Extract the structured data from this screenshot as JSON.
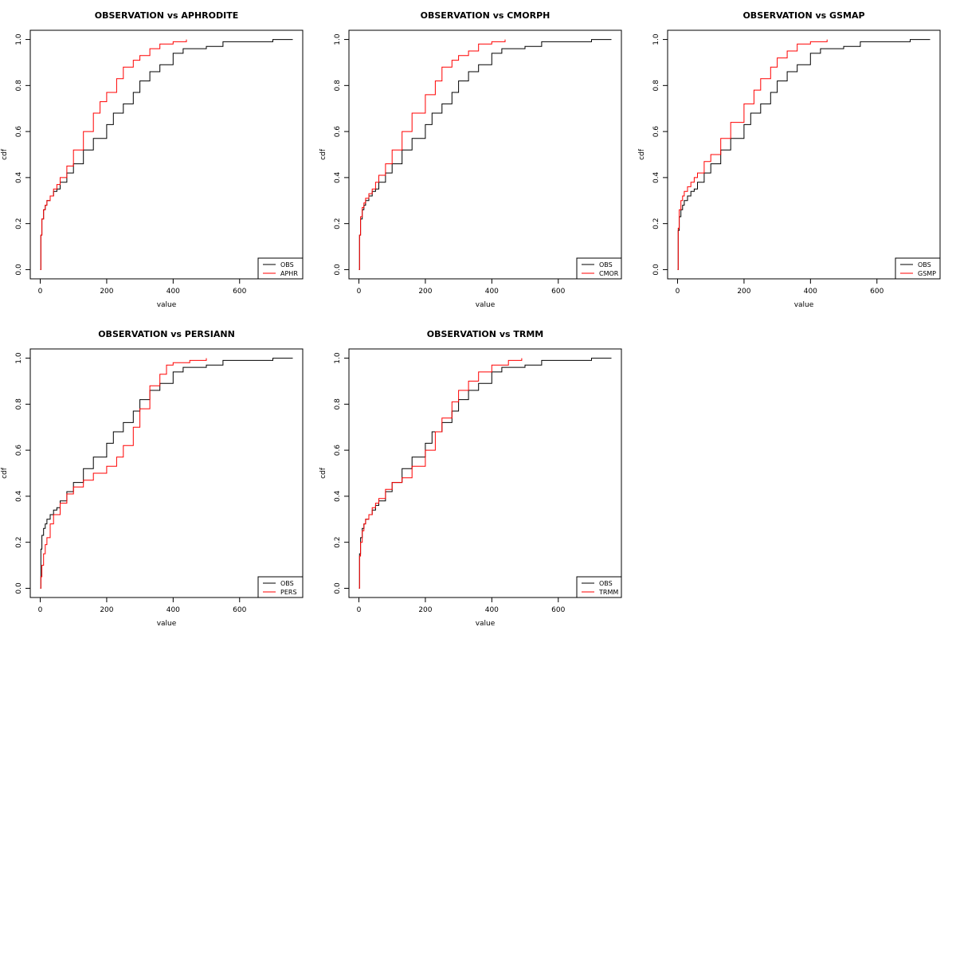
{
  "colors": {
    "obs": "#000000",
    "product": "#ff0000",
    "background": "#ffffff"
  },
  "chart_data": [
    {
      "type": "line",
      "title": "OBSERVATION vs APHRODITE",
      "xlabel": "value",
      "ylabel": "cdf",
      "xlim": [
        0,
        750
      ],
      "ylim": [
        0,
        1
      ],
      "xticks": [
        "0",
        "200",
        "400",
        "600"
      ],
      "yticks": [
        "0.0",
        "0.2",
        "0.4",
        "0.6",
        "0.8",
        "1.0"
      ],
      "grid": false,
      "legend_position": "bottom-right",
      "series": [
        {
          "name": "OBS",
          "color": "#000000",
          "x": [
            0,
            2,
            5,
            10,
            15,
            20,
            30,
            40,
            50,
            60,
            80,
            100,
            130,
            160,
            200,
            220,
            250,
            280,
            300,
            330,
            360,
            400,
            430,
            500,
            550,
            600,
            700,
            760
          ],
          "y": [
            0,
            0.15,
            0.22,
            0.26,
            0.28,
            0.3,
            0.32,
            0.34,
            0.35,
            0.38,
            0.42,
            0.46,
            0.52,
            0.57,
            0.63,
            0.68,
            0.72,
            0.77,
            0.82,
            0.86,
            0.89,
            0.94,
            0.96,
            0.97,
            0.99,
            0.99,
            1.0,
            1.0
          ]
        },
        {
          "name": "APHR",
          "color": "#ff0000",
          "x": [
            0,
            2,
            5,
            10,
            15,
            20,
            30,
            40,
            50,
            60,
            80,
            100,
            130,
            160,
            180,
            200,
            230,
            250,
            280,
            300,
            330,
            360,
            400,
            440
          ],
          "y": [
            0,
            0.15,
            0.22,
            0.26,
            0.28,
            0.3,
            0.32,
            0.35,
            0.37,
            0.4,
            0.45,
            0.52,
            0.6,
            0.68,
            0.73,
            0.77,
            0.83,
            0.88,
            0.91,
            0.93,
            0.96,
            0.98,
            0.99,
            1.0
          ]
        }
      ]
    },
    {
      "type": "line",
      "title": "OBSERVATION vs CMORPH",
      "xlabel": "value",
      "ylabel": "cdf",
      "xlim": [
        0,
        750
      ],
      "ylim": [
        0,
        1
      ],
      "xticks": [
        "0",
        "200",
        "400",
        "600"
      ],
      "yticks": [
        "0.0",
        "0.2",
        "0.4",
        "0.6",
        "0.8",
        "1.0"
      ],
      "grid": false,
      "legend_position": "bottom-right",
      "series": [
        {
          "name": "OBS",
          "color": "#000000",
          "x": [
            0,
            2,
            5,
            10,
            15,
            20,
            30,
            40,
            50,
            60,
            80,
            100,
            130,
            160,
            200,
            220,
            250,
            280,
            300,
            330,
            360,
            400,
            430,
            500,
            550,
            600,
            700,
            760
          ],
          "y": [
            0,
            0.15,
            0.22,
            0.26,
            0.28,
            0.3,
            0.32,
            0.34,
            0.35,
            0.38,
            0.42,
            0.46,
            0.52,
            0.57,
            0.63,
            0.68,
            0.72,
            0.77,
            0.82,
            0.86,
            0.89,
            0.94,
            0.96,
            0.97,
            0.99,
            0.99,
            1.0,
            1.0
          ]
        },
        {
          "name": "CMOR",
          "color": "#ff0000",
          "x": [
            0,
            2,
            5,
            10,
            15,
            20,
            30,
            40,
            50,
            60,
            80,
            100,
            130,
            160,
            200,
            230,
            250,
            280,
            300,
            330,
            360,
            400,
            440
          ],
          "y": [
            0,
            0.15,
            0.23,
            0.27,
            0.29,
            0.31,
            0.33,
            0.35,
            0.38,
            0.41,
            0.46,
            0.52,
            0.6,
            0.68,
            0.76,
            0.82,
            0.88,
            0.91,
            0.93,
            0.95,
            0.98,
            0.99,
            1.0
          ]
        }
      ]
    },
    {
      "type": "line",
      "title": "OBSERVATION vs GSMAP",
      "xlabel": "value",
      "ylabel": "cdf",
      "xlim": [
        0,
        750
      ],
      "ylim": [
        0,
        1
      ],
      "xticks": [
        "0",
        "200",
        "400",
        "600"
      ],
      "yticks": [
        "0.0",
        "0.2",
        "0.4",
        "0.6",
        "0.8",
        "1.0"
      ],
      "grid": false,
      "legend_position": "bottom-right",
      "series": [
        {
          "name": "OBS",
          "color": "#000000",
          "x": [
            0,
            2,
            5,
            10,
            15,
            20,
            30,
            40,
            50,
            60,
            80,
            100,
            130,
            160,
            200,
            220,
            250,
            280,
            300,
            330,
            360,
            400,
            430,
            500,
            550,
            600,
            700,
            760
          ],
          "y": [
            0,
            0.17,
            0.23,
            0.26,
            0.28,
            0.3,
            0.32,
            0.34,
            0.35,
            0.38,
            0.42,
            0.46,
            0.52,
            0.57,
            0.63,
            0.68,
            0.72,
            0.77,
            0.82,
            0.86,
            0.89,
            0.94,
            0.96,
            0.97,
            0.99,
            0.99,
            1.0,
            1.0
          ]
        },
        {
          "name": "GSMP",
          "color": "#ff0000",
          "x": [
            0,
            2,
            5,
            10,
            15,
            20,
            30,
            40,
            50,
            60,
            80,
            100,
            130,
            160,
            200,
            230,
            250,
            280,
            300,
            330,
            360,
            400,
            450
          ],
          "y": [
            0,
            0.18,
            0.26,
            0.3,
            0.32,
            0.34,
            0.36,
            0.38,
            0.4,
            0.42,
            0.47,
            0.5,
            0.57,
            0.64,
            0.72,
            0.78,
            0.83,
            0.88,
            0.92,
            0.95,
            0.98,
            0.99,
            1.0
          ]
        }
      ]
    },
    {
      "type": "line",
      "title": "OBSERVATION vs PERSIANN",
      "xlabel": "value",
      "ylabel": "cdf",
      "xlim": [
        0,
        750
      ],
      "ylim": [
        0,
        1
      ],
      "xticks": [
        "0",
        "200",
        "400",
        "600"
      ],
      "yticks": [
        "0.0",
        "0.2",
        "0.4",
        "0.6",
        "0.8",
        "1.0"
      ],
      "grid": false,
      "legend_position": "bottom-right",
      "series": [
        {
          "name": "OBS",
          "color": "#000000",
          "x": [
            0,
            2,
            5,
            10,
            15,
            20,
            30,
            40,
            50,
            60,
            80,
            100,
            130,
            160,
            200,
            220,
            250,
            280,
            300,
            330,
            360,
            400,
            430,
            500,
            550,
            600,
            700,
            760
          ],
          "y": [
            0,
            0.17,
            0.23,
            0.26,
            0.28,
            0.3,
            0.32,
            0.34,
            0.35,
            0.38,
            0.42,
            0.46,
            0.52,
            0.57,
            0.63,
            0.68,
            0.72,
            0.77,
            0.82,
            0.86,
            0.89,
            0.94,
            0.96,
            0.97,
            0.99,
            0.99,
            1.0,
            1.0
          ]
        },
        {
          "name": "PERS",
          "color": "#ff0000",
          "x": [
            0,
            2,
            5,
            10,
            15,
            20,
            30,
            40,
            60,
            80,
            100,
            130,
            160,
            200,
            230,
            250,
            280,
            300,
            330,
            360,
            380,
            400,
            450,
            500
          ],
          "y": [
            0,
            0.05,
            0.1,
            0.15,
            0.19,
            0.22,
            0.28,
            0.32,
            0.37,
            0.41,
            0.44,
            0.47,
            0.5,
            0.53,
            0.57,
            0.62,
            0.7,
            0.78,
            0.88,
            0.93,
            0.97,
            0.98,
            0.99,
            1.0
          ]
        }
      ]
    },
    {
      "type": "line",
      "title": "OBSERVATION vs TRMM",
      "xlabel": "value",
      "ylabel": "cdf",
      "xlim": [
        0,
        750
      ],
      "ylim": [
        0,
        1
      ],
      "xticks": [
        "0",
        "200",
        "400",
        "600"
      ],
      "yticks": [
        "0.0",
        "0.2",
        "0.4",
        "0.6",
        "0.8",
        "1.0"
      ],
      "grid": false,
      "legend_position": "bottom-right",
      "series": [
        {
          "name": "OBS",
          "color": "#000000",
          "x": [
            0,
            2,
            5,
            10,
            15,
            20,
            30,
            40,
            50,
            60,
            80,
            100,
            130,
            160,
            200,
            220,
            250,
            280,
            300,
            330,
            360,
            400,
            430,
            500,
            550,
            600,
            700,
            760
          ],
          "y": [
            0,
            0.15,
            0.22,
            0.26,
            0.28,
            0.3,
            0.32,
            0.34,
            0.36,
            0.38,
            0.42,
            0.46,
            0.52,
            0.57,
            0.63,
            0.68,
            0.72,
            0.77,
            0.82,
            0.86,
            0.89,
            0.94,
            0.96,
            0.97,
            0.99,
            0.99,
            1.0,
            1.0
          ]
        },
        {
          "name": "TRMM",
          "color": "#ff0000",
          "x": [
            0,
            2,
            5,
            10,
            15,
            20,
            30,
            40,
            50,
            60,
            80,
            100,
            130,
            160,
            200,
            230,
            250,
            280,
            300,
            330,
            360,
            400,
            450,
            490
          ],
          "y": [
            0,
            0.14,
            0.2,
            0.25,
            0.28,
            0.3,
            0.32,
            0.35,
            0.37,
            0.39,
            0.43,
            0.46,
            0.48,
            0.53,
            0.6,
            0.68,
            0.74,
            0.81,
            0.86,
            0.9,
            0.94,
            0.97,
            0.99,
            1.0
          ]
        }
      ]
    }
  ]
}
